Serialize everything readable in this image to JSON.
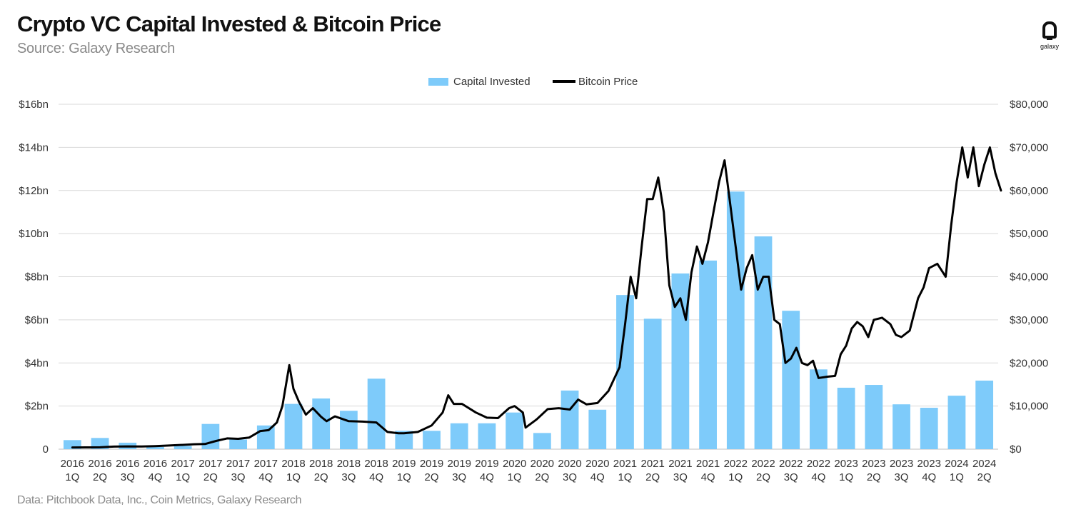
{
  "header": {
    "title": "Crypto VC Capital Invested & Bitcoin Price",
    "subtitle": "Source: Galaxy Research"
  },
  "footer": {
    "note": "Data: Pitchbook Data, Inc., Coin Metrics, Galaxy Research"
  },
  "logo": {
    "text": "galaxy",
    "icon": "galaxy-logo-icon"
  },
  "colors": {
    "bars": "#7ecbfa",
    "line": "#000000",
    "grid": "#d9d9d9"
  },
  "chart_data": {
    "type": "bar",
    "legend": {
      "position": "top-center",
      "entries": [
        "Capital Invested",
        "Bitcoin Price"
      ]
    },
    "categories": [
      "2016 1Q",
      "2016 2Q",
      "2016 3Q",
      "2016 4Q",
      "2017 1Q",
      "2017 2Q",
      "2017 3Q",
      "2017 4Q",
      "2018 1Q",
      "2018 2Q",
      "2018 3Q",
      "2018 4Q",
      "2019 1Q",
      "2019 2Q",
      "2019 3Q",
      "2019 4Q",
      "2020 1Q",
      "2020 2Q",
      "2020 3Q",
      "2020 4Q",
      "2021 1Q",
      "2021 2Q",
      "2021 3Q",
      "2021 4Q",
      "2022 1Q",
      "2022 2Q",
      "2022 3Q",
      "2022 4Q",
      "2023 1Q",
      "2023 2Q",
      "2023 3Q",
      "2023 4Q",
      "2024 1Q",
      "2024 2Q"
    ],
    "category_labels": [
      [
        "2016",
        "1Q"
      ],
      [
        "2016",
        "2Q"
      ],
      [
        "2016",
        "3Q"
      ],
      [
        "2016",
        "4Q"
      ],
      [
        "2017",
        "1Q"
      ],
      [
        "2017",
        "2Q"
      ],
      [
        "2017",
        "3Q"
      ],
      [
        "2017",
        "4Q"
      ],
      [
        "2018",
        "1Q"
      ],
      [
        "2018",
        "2Q"
      ],
      [
        "2018",
        "3Q"
      ],
      [
        "2018",
        "4Q"
      ],
      [
        "2019",
        "1Q"
      ],
      [
        "2019",
        "2Q"
      ],
      [
        "2019",
        "3Q"
      ],
      [
        "2019",
        "4Q"
      ],
      [
        "2020",
        "1Q"
      ],
      [
        "2020",
        "2Q"
      ],
      [
        "2020",
        "3Q"
      ],
      [
        "2020",
        "4Q"
      ],
      [
        "2021",
        "1Q"
      ],
      [
        "2021",
        "2Q"
      ],
      [
        "2021",
        "3Q"
      ],
      [
        "2021",
        "4Q"
      ],
      [
        "2022",
        "1Q"
      ],
      [
        "2022",
        "2Q"
      ],
      [
        "2022",
        "3Q"
      ],
      [
        "2022",
        "4Q"
      ],
      [
        "2023",
        "1Q"
      ],
      [
        "2023",
        "2Q"
      ],
      [
        "2023",
        "3Q"
      ],
      [
        "2023",
        "4Q"
      ],
      [
        "2024",
        "1Q"
      ],
      [
        "2024",
        "2Q"
      ]
    ],
    "series": [
      {
        "name": "Capital Invested",
        "type": "bar",
        "axis": "left",
        "unit": "$bn",
        "values": [
          0.42,
          0.52,
          0.3,
          0.1,
          0.15,
          1.17,
          0.45,
          1.1,
          2.1,
          2.35,
          1.78,
          3.27,
          0.85,
          0.85,
          1.2,
          1.2,
          1.7,
          0.75,
          2.72,
          1.83,
          7.15,
          6.05,
          8.15,
          8.75,
          11.95,
          9.87,
          6.42,
          3.7,
          2.85,
          2.98,
          2.08,
          1.92,
          2.48,
          3.18
        ]
      },
      {
        "name": "Bitcoin Price",
        "type": "line",
        "axis": "right",
        "unit": "USD",
        "points": [
          [
            0.0,
            400
          ],
          [
            0.5,
            420
          ],
          [
            1.0,
            430
          ],
          [
            1.5,
            600
          ],
          [
            2.0,
            650
          ],
          [
            2.5,
            610
          ],
          [
            3.0,
            700
          ],
          [
            3.5,
            850
          ],
          [
            4.0,
            1000
          ],
          [
            4.4,
            1150
          ],
          [
            4.8,
            1200
          ],
          [
            5.2,
            1900
          ],
          [
            5.6,
            2500
          ],
          [
            6.0,
            2400
          ],
          [
            6.4,
            2700
          ],
          [
            6.8,
            4200
          ],
          [
            7.1,
            4400
          ],
          [
            7.4,
            6200
          ],
          [
            7.6,
            10000
          ],
          [
            7.85,
            19500
          ],
          [
            8.0,
            14000
          ],
          [
            8.2,
            11000
          ],
          [
            8.45,
            8000
          ],
          [
            8.7,
            9500
          ],
          [
            9.0,
            7500
          ],
          [
            9.2,
            6500
          ],
          [
            9.5,
            7600
          ],
          [
            10.0,
            6500
          ],
          [
            10.5,
            6400
          ],
          [
            11.0,
            6200
          ],
          [
            11.4,
            4000
          ],
          [
            11.8,
            3700
          ],
          [
            12.0,
            3700
          ],
          [
            12.5,
            4000
          ],
          [
            13.0,
            5500
          ],
          [
            13.4,
            8500
          ],
          [
            13.6,
            12500
          ],
          [
            13.8,
            10500
          ],
          [
            14.1,
            10500
          ],
          [
            14.6,
            8500
          ],
          [
            15.0,
            7300
          ],
          [
            15.4,
            7200
          ],
          [
            15.8,
            9500
          ],
          [
            16.0,
            10000
          ],
          [
            16.3,
            8500
          ],
          [
            16.4,
            5000
          ],
          [
            16.8,
            6900
          ],
          [
            17.2,
            9300
          ],
          [
            17.6,
            9500
          ],
          [
            18.0,
            9200
          ],
          [
            18.3,
            11500
          ],
          [
            18.6,
            10400
          ],
          [
            19.0,
            10700
          ],
          [
            19.4,
            13500
          ],
          [
            19.8,
            19000
          ],
          [
            20.0,
            29000
          ],
          [
            20.2,
            40000
          ],
          [
            20.4,
            35000
          ],
          [
            20.6,
            47000
          ],
          [
            20.8,
            58000
          ],
          [
            21.0,
            58000
          ],
          [
            21.2,
            63000
          ],
          [
            21.4,
            55000
          ],
          [
            21.6,
            38000
          ],
          [
            21.8,
            33000
          ],
          [
            22.0,
            35000
          ],
          [
            22.2,
            30000
          ],
          [
            22.4,
            41000
          ],
          [
            22.6,
            47000
          ],
          [
            22.8,
            43000
          ],
          [
            23.0,
            48000
          ],
          [
            23.2,
            55000
          ],
          [
            23.4,
            62000
          ],
          [
            23.6,
            67000
          ],
          [
            23.8,
            57000
          ],
          [
            24.0,
            47000
          ],
          [
            24.2,
            37000
          ],
          [
            24.4,
            42000
          ],
          [
            24.6,
            45000
          ],
          [
            24.8,
            37000
          ],
          [
            25.0,
            40000
          ],
          [
            25.2,
            40000
          ],
          [
            25.4,
            30000
          ],
          [
            25.6,
            29000
          ],
          [
            25.8,
            20000
          ],
          [
            26.0,
            21000
          ],
          [
            26.2,
            23500
          ],
          [
            26.4,
            20000
          ],
          [
            26.6,
            19500
          ],
          [
            26.8,
            20500
          ],
          [
            27.0,
            16500
          ],
          [
            27.3,
            16800
          ],
          [
            27.6,
            17000
          ],
          [
            27.8,
            22000
          ],
          [
            28.0,
            24000
          ],
          [
            28.2,
            28000
          ],
          [
            28.4,
            29500
          ],
          [
            28.6,
            28500
          ],
          [
            28.8,
            26000
          ],
          [
            29.0,
            30000
          ],
          [
            29.3,
            30500
          ],
          [
            29.6,
            29000
          ],
          [
            29.8,
            26500
          ],
          [
            30.0,
            26000
          ],
          [
            30.3,
            27500
          ],
          [
            30.6,
            35000
          ],
          [
            30.8,
            37500
          ],
          [
            31.0,
            42000
          ],
          [
            31.3,
            43000
          ],
          [
            31.6,
            40000
          ],
          [
            31.8,
            52000
          ],
          [
            32.0,
            62000
          ],
          [
            32.2,
            70000
          ],
          [
            32.4,
            63000
          ],
          [
            32.6,
            70000
          ],
          [
            32.8,
            61000
          ],
          [
            33.0,
            66000
          ],
          [
            33.2,
            70000
          ],
          [
            33.4,
            64000
          ],
          [
            33.6,
            60000
          ]
        ]
      }
    ],
    "y_left": {
      "ylim": [
        0,
        16
      ],
      "ticks": [
        "0",
        "$2bn",
        "$4bn",
        "$6bn",
        "$8bn",
        "$10bn",
        "$12bn",
        "$14bn",
        "$16bn"
      ]
    },
    "y_right": {
      "ylim": [
        0,
        80000
      ],
      "ticks": [
        "$0",
        "$10,000",
        "$20,000",
        "$30,000",
        "$40,000",
        "$50,000",
        "$60,000",
        "$70,000",
        "$80,000"
      ]
    },
    "grid": true,
    "xlabel": "",
    "ylabel": ""
  }
}
